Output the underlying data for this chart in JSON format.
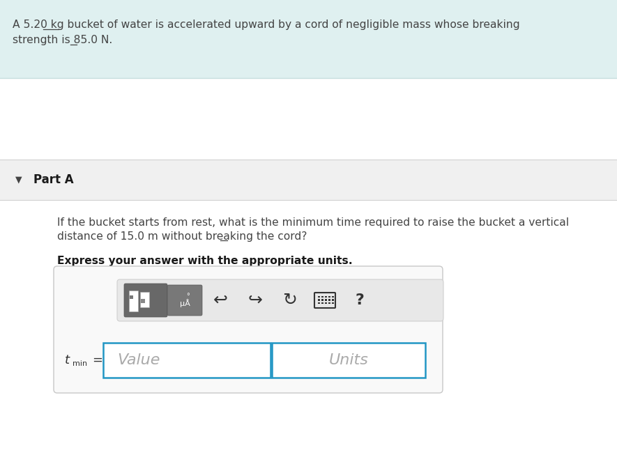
{
  "bg_color": "#ffffff",
  "header_bg": "#dff0f0",
  "header_text_line1": "A 5.20 kg bucket of water is accelerated upward by a cord of negligible mass whose breaking",
  "header_text_line2": "strength is 85.0 N.",
  "header_text_color": "#444444",
  "part_a_bg": "#f0f0f0",
  "part_a_label": "Part A",
  "question_line1": "If the bucket starts from rest, what is the minimum time required to raise the bucket a vertical",
  "question_line2": "distance of 15.0 m without breaking the cord?",
  "bold_text": "Express your answer with the appropriate units.",
  "value_placeholder": "Value",
  "units_placeholder": "Units",
  "input_border": "#2196c4",
  "toolbar_bg1": "#686868",
  "toolbar_bg2": "#787878",
  "toolbar_pill_bg": "#e8e8e8",
  "section_line_color": "#d0d0d0",
  "text_color": "#444444",
  "icon_color": "#333333"
}
